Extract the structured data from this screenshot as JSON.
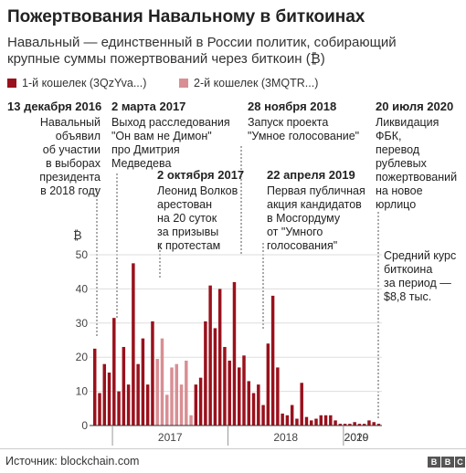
{
  "title": "Пожертвования Навальному в биткоинах",
  "subtitle": "Навальный — единственный в России политик, собирающий крупные суммы пожертвований через биткоин (₿)",
  "colors": {
    "series1": "#99111c",
    "series2": "#d88f94",
    "text": "#222222",
    "grid": "#dddddd"
  },
  "legend": [
    {
      "label": "1-й кошелек (3QzYva...)",
      "color": "#99111c"
    },
    {
      "label": "2-й кошелек (3MQTR...)",
      "color": "#d88f94"
    }
  ],
  "annotations": [
    {
      "date": "13 декабря 2016",
      "text": "Навальный\nобъявил\nоб участии\nв выборах\nпрезидента\nв 2018 году"
    },
    {
      "date": "2 марта 2017",
      "text": "Выход расследования\n\"Он вам не Димон\"\nпро Дмитрия\nМедведева"
    },
    {
      "date": "2 октября 2017",
      "text": "Леонид Волков\nарестован\nна 20 суток\nза призывы\nк протестам"
    },
    {
      "date": "28 ноября 2018",
      "text": "Запуск проекта\n\"Умное голосование\""
    },
    {
      "date": "22 апреля 2019",
      "text": "Первая публичная\nакция кандидатов\nв Мосгордуму\nот \"Умного\nголосования\""
    },
    {
      "date": "20 июля 2020",
      "text": "Ликвидация\nФБК,\nперевод\nрублевых\nпожертвований\nна новое\nюрлицо"
    }
  ],
  "side_note": "Средний курс\nбиткоина\nза период —\n$8,8 тыс.",
  "source": "Источник: blockchain.com",
  "logo": "BBC",
  "chart_data": {
    "type": "bar",
    "title": "",
    "ylabel": "₿",
    "ylim": [
      0,
      50
    ],
    "yticks": [
      0,
      10,
      20,
      30,
      40,
      50
    ],
    "xlabels": [
      "2017",
      "2018",
      "2019",
      "2020"
    ],
    "x_start": "2016-11",
    "bar_interval": "half-month",
    "series": [
      {
        "name": "1-й кошелек (3QzYva...)",
        "values": [
          22.5,
          9.5,
          18,
          15.5,
          31.5,
          10,
          23,
          12,
          47.5,
          18,
          25.5,
          12,
          30.5,
          0,
          0,
          0,
          0,
          0,
          0,
          0,
          0,
          12,
          14,
          30.5,
          41,
          28.5,
          40,
          23,
          19,
          42,
          17,
          20.5,
          13,
          9.5,
          12,
          6,
          24,
          38,
          17,
          3.5,
          3,
          6,
          2,
          12.5,
          2.5,
          1.5,
          2,
          3,
          3,
          3,
          1.5,
          0.5,
          0.5,
          0.5,
          1,
          0.5,
          0.5,
          1.5,
          1,
          0.5
        ]
      },
      {
        "name": "2-й кошелек (3MQTR...)",
        "values": [
          0,
          0,
          0,
          0,
          0,
          0,
          0,
          0,
          0,
          0,
          0,
          0,
          0,
          19.5,
          25.5,
          9,
          17,
          18,
          12,
          19,
          3,
          0,
          0,
          0,
          0,
          0,
          0,
          0,
          0,
          0,
          0,
          0,
          0,
          0,
          0,
          0,
          0,
          0,
          0,
          0,
          0,
          0,
          0,
          0,
          0,
          0,
          0,
          0,
          0,
          0,
          0,
          0,
          0,
          0,
          0,
          0,
          0,
          0,
          0,
          0
        ]
      }
    ]
  }
}
